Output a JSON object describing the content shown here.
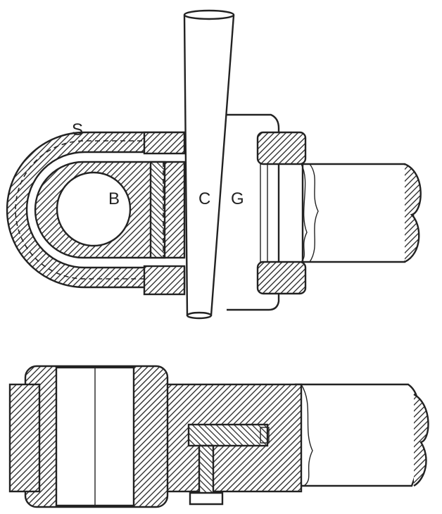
{
  "labels": {
    "strap": "S",
    "brass": "B",
    "cotter": "C",
    "gib": "G"
  },
  "colors": {
    "ink": "#222222",
    "hatch_fill": "#8a8a8a",
    "paper": "#ffffff"
  }
}
